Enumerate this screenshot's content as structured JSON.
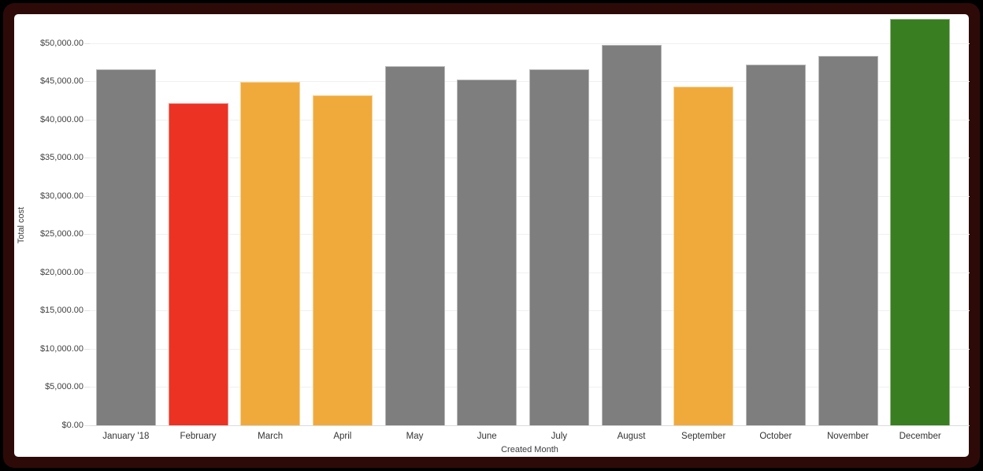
{
  "frame": {
    "outer_background": "#000000",
    "border_color": "#2d0a08",
    "canvas_color": "#ffffff"
  },
  "chart_data": {
    "type": "bar",
    "title": "",
    "xlabel": "Created Month",
    "ylabel": "Total cost",
    "categories": [
      "January '18",
      "February",
      "March",
      "April",
      "May",
      "June",
      "July",
      "August",
      "September",
      "October",
      "November",
      "December"
    ],
    "values": [
      46600,
      42200,
      44900,
      43200,
      47000,
      45300,
      46550,
      49800,
      44300,
      47200,
      48300,
      53200
    ],
    "bar_colors": [
      "#7e7e7e",
      "#eb3223",
      "#f0aa3c",
      "#f0aa3c",
      "#7e7e7e",
      "#7e7e7e",
      "#7e7e7e",
      "#7e7e7e",
      "#f0aa3c",
      "#7e7e7e",
      "#7e7e7e",
      "#397e21"
    ],
    "color_legend": {
      "default": "#7e7e7e",
      "low": "#eb3223",
      "warning": "#f0aa3c",
      "high": "#397e21"
    },
    "y_ticks": [
      {
        "value": 0,
        "label": "$0.00"
      },
      {
        "value": 5000,
        "label": "$5,000.00"
      },
      {
        "value": 10000,
        "label": "$10,000.00"
      },
      {
        "value": 15000,
        "label": "$15,000.00"
      },
      {
        "value": 20000,
        "label": "$20,000.00"
      },
      {
        "value": 25000,
        "label": "$25,000.00"
      },
      {
        "value": 30000,
        "label": "$30,000.00"
      },
      {
        "value": 35000,
        "label": "$35,000.00"
      },
      {
        "value": 40000,
        "label": "$40,000.00"
      },
      {
        "value": 45000,
        "label": "$45,000.00"
      },
      {
        "value": 50000,
        "label": "$50,000.00"
      }
    ],
    "ylim": [
      0,
      53600
    ],
    "grid": "horizontal",
    "legend": "none"
  }
}
